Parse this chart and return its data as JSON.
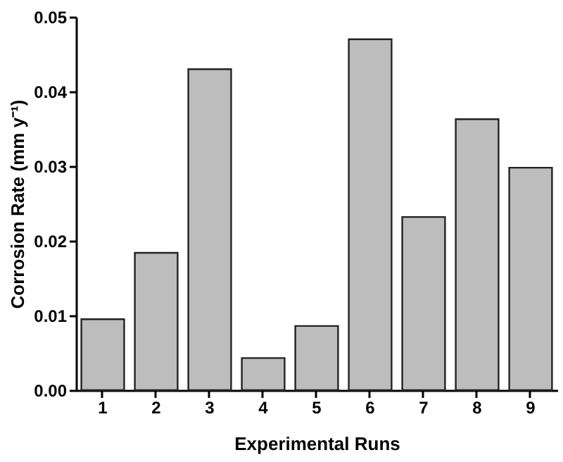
{
  "chart_data": {
    "type": "bar",
    "xlabel": "Experimental Runs",
    "ylabel": "Corrosion Rate (mm y⁻¹)",
    "categories": [
      "1",
      "2",
      "3",
      "4",
      "5",
      "6",
      "7",
      "8",
      "9"
    ],
    "values": [
      0.0095,
      0.0184,
      0.043,
      0.0043,
      0.0086,
      0.047,
      0.0232,
      0.0363,
      0.0298
    ],
    "color": "#bdbdbd",
    "ylim": [
      0,
      0.05
    ],
    "yticks": [
      {
        "value": 0,
        "label": "0.00"
      },
      {
        "value": 0.01,
        "label": "0.01"
      },
      {
        "value": 0.02,
        "label": "0.02"
      },
      {
        "value": 0.03,
        "label": "0.03"
      },
      {
        "value": 0.04,
        "label": "0.04"
      },
      {
        "value": 0.05,
        "label": "0.05"
      }
    ],
    "grid": false
  }
}
